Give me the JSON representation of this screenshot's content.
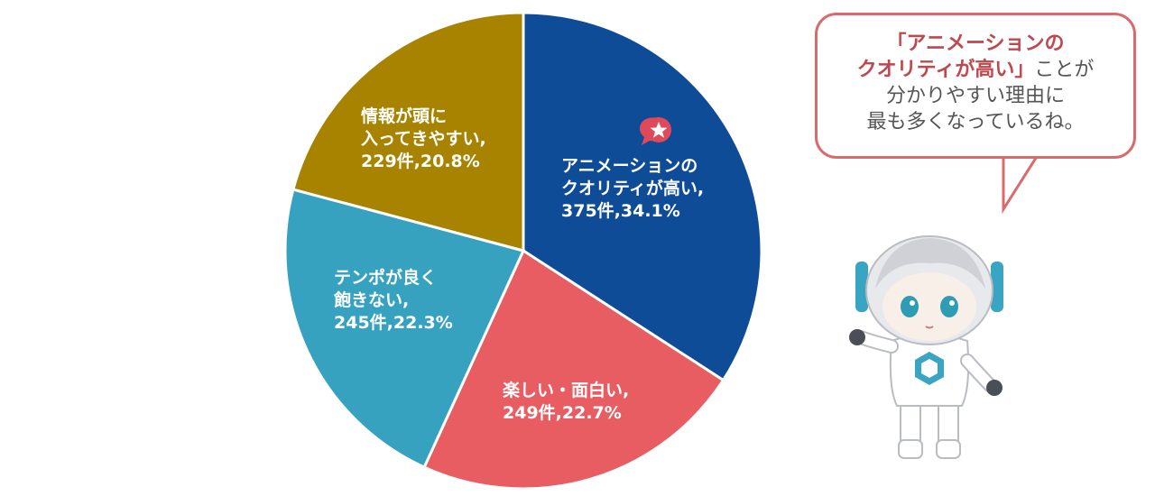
{
  "chart_data": {
    "type": "pie",
    "slices": [
      {
        "label_lines": [
          "アニメーションの",
          "クオリティが高い,"
        ],
        "count": 375,
        "percent": 34.1,
        "count_text": "375件,34.1%",
        "color": "#0f4c97"
      },
      {
        "label_lines": [
          "楽しい・面白い,"
        ],
        "count": 249,
        "percent": 22.7,
        "count_text": "249件,22.7%",
        "color": "#e85d62"
      },
      {
        "label_lines": [
          "テンポが良く",
          "飽きない,"
        ],
        "count": 245,
        "percent": 22.3,
        "count_text": "245件,22.3%",
        "color": "#36a2c0"
      },
      {
        "label_lines": [
          "情報が頭に",
          "入ってきやすい,"
        ],
        "count": 229,
        "percent": 20.8,
        "count_text": "229件,20.8%",
        "color": "#a78300"
      }
    ],
    "start_angle_deg": 0,
    "direction": "clockwise",
    "highlight_slice": 0,
    "highlight_icon": "star-speech-bubble-icon"
  },
  "callout": {
    "highlight_line1": "「アニメーションの",
    "highlight_line2": "クオリティが高い」",
    "line2_suffix": "ことが",
    "line3": "分かりやすい理由に",
    "line4": "最も多くなっているね。",
    "border_color": "#d96a6e",
    "highlight_color": "#c0474d"
  },
  "mascot": {
    "icon": "robot-mascot-icon"
  }
}
